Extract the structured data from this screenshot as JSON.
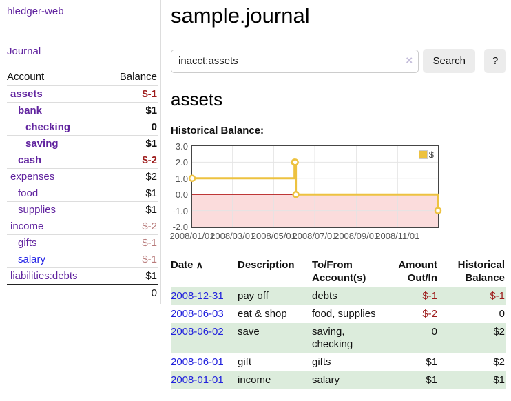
{
  "sidebar": {
    "brand": "hledger-web",
    "nav_journal": "Journal",
    "col_account": "Account",
    "col_balance": "Balance",
    "accounts": [
      {
        "name": "assets",
        "indent": 1,
        "emph": true,
        "tone": "visited",
        "value": "$-1",
        "value_tone": "neg-strong"
      },
      {
        "name": "bank",
        "indent": 2,
        "emph": true,
        "tone": "visited",
        "value": "$1",
        "value_tone": "normal"
      },
      {
        "name": "checking",
        "indent": 3,
        "emph": true,
        "tone": "visited",
        "value": "0",
        "value_tone": "normal"
      },
      {
        "name": "saving",
        "indent": 3,
        "emph": true,
        "tone": "visited",
        "value": "$1",
        "value_tone": "normal"
      },
      {
        "name": "cash",
        "indent": 2,
        "emph": true,
        "tone": "visited",
        "value": "$-2",
        "value_tone": "neg-strong"
      },
      {
        "name": "expenses",
        "indent": 1,
        "emph": false,
        "tone": "visited",
        "value": "$2",
        "value_tone": "normal"
      },
      {
        "name": "food",
        "indent": 2,
        "emph": false,
        "tone": "visited",
        "value": "$1",
        "value_tone": "normal"
      },
      {
        "name": "supplies",
        "indent": 2,
        "emph": false,
        "tone": "visited",
        "value": "$1",
        "value_tone": "normal"
      },
      {
        "name": "income",
        "indent": 1,
        "emph": false,
        "tone": "visited",
        "value": "$-2",
        "value_tone": "neg-muted"
      },
      {
        "name": "gifts",
        "indent": 2,
        "emph": false,
        "tone": "visited",
        "value": "$-1",
        "value_tone": "neg-muted"
      },
      {
        "name": "salary",
        "indent": 2,
        "emph": false,
        "tone": "unvisited",
        "value": "$-1",
        "value_tone": "neg-muted"
      },
      {
        "name": "liabilities:debts",
        "indent": 1,
        "emph": false,
        "tone": "visited",
        "value": "$1",
        "value_tone": "normal"
      }
    ],
    "total": "0"
  },
  "main": {
    "title": "sample.journal",
    "search": {
      "value": "inacct:assets",
      "clear_icon": "×",
      "button": "Search",
      "help": "?"
    },
    "account_heading": "assets",
    "chart_label": "Historical Balance:",
    "register": {
      "headers": {
        "date": "Date",
        "sort_arrow": "∧",
        "description": "Description",
        "account": "To/From Account(s)",
        "amount": "Amount Out/In",
        "balance": "Historical Balance"
      },
      "rows": [
        {
          "date": "2008-12-31",
          "description": "pay off",
          "account": "debts",
          "amount": "$-1",
          "amount_tone": "neg-strong",
          "balance": "$-1",
          "balance_tone": "neg-strong"
        },
        {
          "date": "2008-06-03",
          "description": "eat & shop",
          "account": "food, supplies",
          "amount": "$-2",
          "amount_tone": "neg-strong",
          "balance": "0",
          "balance_tone": "normal"
        },
        {
          "date": "2008-06-02",
          "description": "save",
          "account": "saving, checking",
          "amount": "0",
          "amount_tone": "normal",
          "balance": "$2",
          "balance_tone": "normal"
        },
        {
          "date": "2008-06-01",
          "description": "gift",
          "account": "gifts",
          "amount": "$1",
          "amount_tone": "normal",
          "balance": "$2",
          "balance_tone": "normal"
        },
        {
          "date": "2008-01-01",
          "description": "income",
          "account": "salary",
          "amount": "$1",
          "amount_tone": "normal",
          "balance": "$1",
          "balance_tone": "normal"
        }
      ]
    }
  },
  "chart_data": {
    "type": "line",
    "step": true,
    "title": "Historical Balance",
    "series": [
      {
        "name": "$",
        "color": "#edc240",
        "points": [
          [
            "2008-01-01",
            1
          ],
          [
            "2008-06-01",
            2
          ],
          [
            "2008-06-02",
            2
          ],
          [
            "2008-06-03",
            0
          ],
          [
            "2008-12-31",
            -1
          ]
        ]
      }
    ],
    "x_ticks": [
      "2008/01/01",
      "2008/03/01",
      "2008/05/01",
      "2008/07/01",
      "2008/09/01",
      "2008/11/01"
    ],
    "y_ticks": [
      3.0,
      2.0,
      1.0,
      0.0,
      -1.0,
      -2.0
    ],
    "xlim": [
      "2008-01-01",
      "2008-12-31"
    ],
    "ylim": [
      -2,
      3
    ],
    "grid": true,
    "legend_position": "top-right",
    "grid_color": "#e4e4e4",
    "negative_region_color": "#fbdcdc",
    "zero_line_color": "#aa0000",
    "marker_fill": "#ffffff"
  }
}
